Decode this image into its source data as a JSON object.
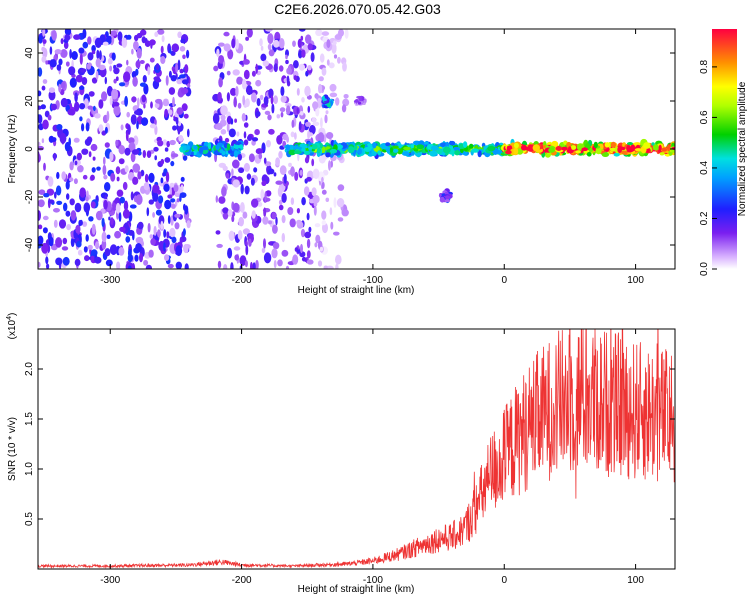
{
  "title": "C2E6.2026.070.05.42.G03",
  "chart_data": [
    {
      "type": "heatmap",
      "title": "C2E6.2026.070.05.42.G03",
      "xlabel": "Height of straight line (km)",
      "ylabel": "Frequency (Hz)",
      "xlim": [
        -355,
        130
      ],
      "ylim": [
        -50,
        50
      ],
      "xticks": [
        -300,
        -200,
        -100,
        0,
        100
      ],
      "xtick_labels": [
        "-300",
        "-200",
        "-100",
        "0",
        "100"
      ],
      "yticks": [
        -40,
        -20,
        0,
        20,
        40
      ],
      "ytick_labels": [
        "-40",
        "-20",
        "0",
        "20",
        "40"
      ],
      "colorbar": {
        "label": "Normalized spectral amplitude",
        "range": [
          0,
          0.95
        ],
        "ticks": [
          0.0,
          0.2,
          0.4,
          0.6,
          0.8
        ],
        "tick_labels": [
          "0.0",
          "0.2",
          "0.4",
          "0.6",
          "0.8"
        ]
      },
      "features": [
        {
          "name": "broadband noise",
          "x_range": [
            -355,
            -240
          ],
          "f_range": [
            -50,
            50
          ],
          "amplitude": 0.15
        },
        {
          "name": "broadband noise",
          "x_range": [
            -220,
            -145
          ],
          "f_range": [
            -50,
            50
          ],
          "amplitude": 0.12
        },
        {
          "name": "broadband noise",
          "x_range": [
            -145,
            -120
          ],
          "f_range": [
            -50,
            50
          ],
          "amplitude": 0.05
        },
        {
          "name": "narrowband signal",
          "x_range": [
            -245,
            -200
          ],
          "f_center": 0,
          "amplitude": 0.45
        },
        {
          "name": "narrowband signal",
          "x_range": [
            -165,
            0
          ],
          "f_center": 0,
          "amplitude": 0.5
        },
        {
          "name": "narrowband signal",
          "x_range": [
            0,
            130
          ],
          "f_center": 0,
          "amplitude": 0.9
        },
        {
          "name": "weak feature",
          "x": -135,
          "f_center": 20,
          "amplitude": 0.4
        },
        {
          "name": "weak feature",
          "x": -110,
          "f_center": 20,
          "amplitude": 0.12
        },
        {
          "name": "weak feature",
          "x": -45,
          "f_center": -20,
          "amplitude": 0.25
        }
      ]
    },
    {
      "type": "line",
      "xlabel": "Height of straight line (km)",
      "ylabel": "SNR (10 * v/v)",
      "y_multiplier_label": "(x10^4)",
      "xlim": [
        -355,
        130
      ],
      "ylim": [
        0,
        2.4
      ],
      "xticks": [
        -300,
        -200,
        -100,
        0,
        100
      ],
      "xtick_labels": [
        "-300",
        "-200",
        "-100",
        "0",
        "100"
      ],
      "yticks": [
        0.5,
        1.0,
        1.5,
        2.0
      ],
      "ytick_labels": [
        "0.5",
        "1.0",
        "1.5",
        "2.0"
      ],
      "series": [
        {
          "name": "SNR",
          "color": "#ee3333",
          "x": [
            -355,
            -300,
            -240,
            -215,
            -200,
            -160,
            -120,
            -100,
            -80,
            -60,
            -50,
            -40,
            -30,
            -20,
            -10,
            0,
            10,
            20,
            30,
            40,
            60,
            80,
            100,
            115,
            130
          ],
          "y": [
            0.03,
            0.03,
            0.04,
            0.07,
            0.04,
            0.03,
            0.05,
            0.08,
            0.15,
            0.25,
            0.3,
            0.32,
            0.4,
            0.65,
            0.95,
            1.12,
            1.3,
            1.45,
            1.55,
            1.65,
            1.72,
            1.66,
            1.58,
            1.55,
            1.52
          ]
        }
      ]
    }
  ]
}
